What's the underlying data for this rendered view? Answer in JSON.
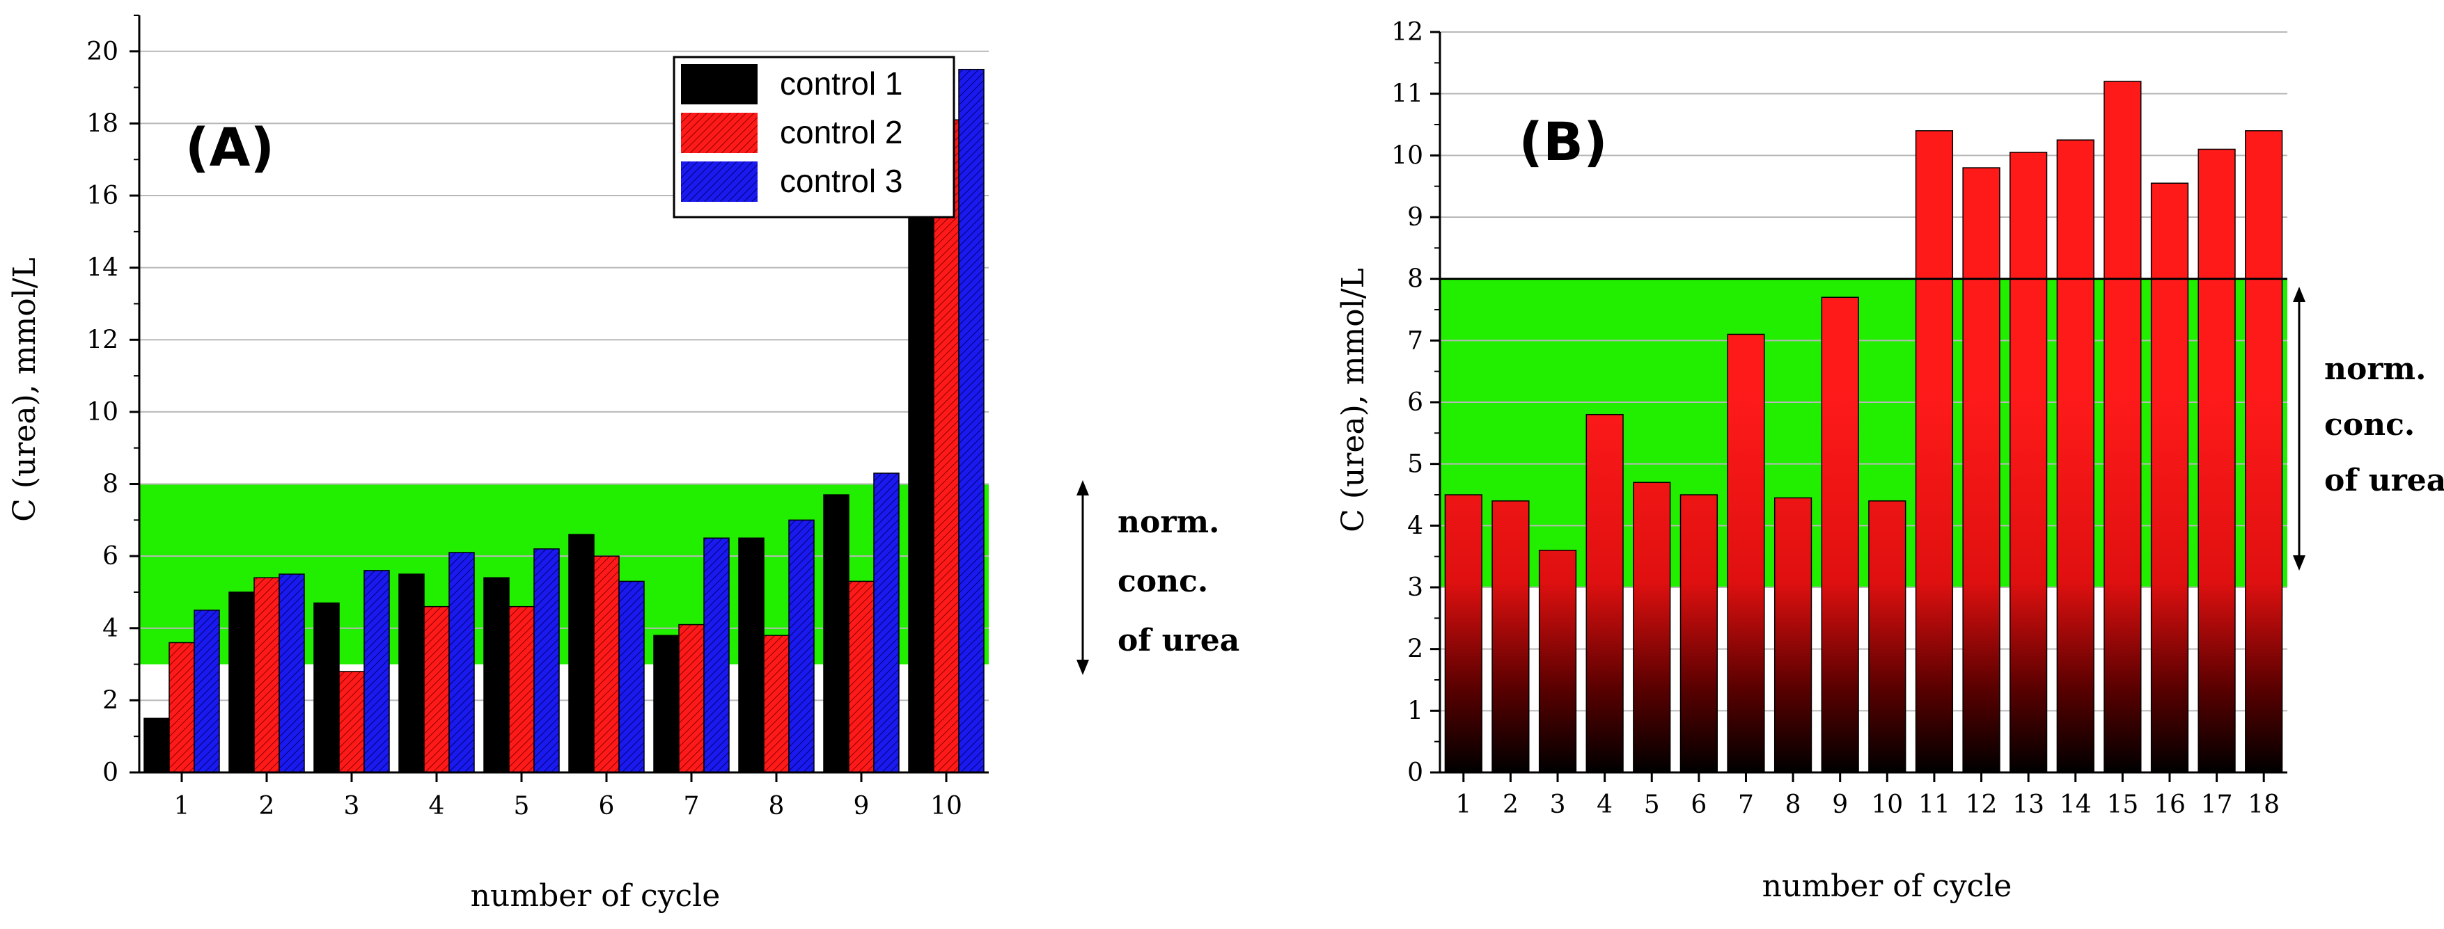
{
  "colors": {
    "normal_band": "#22ee00",
    "control1": "#000000",
    "control2": "#ff1a1a",
    "control3": "#1a1aee",
    "gridline": "#b8b8b8"
  },
  "chart_data": [
    {
      "id": "A",
      "type": "bar",
      "panel_label": "(A)",
      "xlabel": "number of cycle",
      "ylabel": "C (urea), mmol/L",
      "ylim": [
        0,
        21
      ],
      "yticks": [
        0,
        2,
        4,
        6,
        8,
        10,
        12,
        14,
        16,
        18,
        20
      ],
      "categories": [
        "1",
        "2",
        "3",
        "4",
        "5",
        "6",
        "7",
        "8",
        "9",
        "10"
      ],
      "series": [
        {
          "name": "control 1",
          "values": [
            1.5,
            5.0,
            4.7,
            5.5,
            5.4,
            6.6,
            3.8,
            6.5,
            7.7,
            19.4
          ]
        },
        {
          "name": "control 2",
          "values": [
            3.6,
            5.4,
            2.8,
            4.6,
            4.6,
            6.0,
            4.1,
            3.8,
            5.3,
            18.1
          ]
        },
        {
          "name": "control 3",
          "values": [
            4.5,
            5.5,
            5.6,
            6.1,
            6.2,
            5.3,
            6.5,
            7.0,
            8.3,
            19.5
          ]
        }
      ],
      "normal_range": [
        3,
        8
      ],
      "normal_range_label": [
        "norm.",
        "conc.",
        "of urea"
      ],
      "legend_position": "top-right"
    },
    {
      "id": "B",
      "type": "bar",
      "panel_label": "(B)",
      "xlabel": "number of cycle",
      "ylabel": "C (urea), mmol/L",
      "ylim": [
        0,
        12
      ],
      "yticks": [
        0,
        1,
        2,
        3,
        4,
        5,
        6,
        7,
        8,
        9,
        10,
        11,
        12
      ],
      "categories": [
        "1",
        "2",
        "3",
        "4",
        "5",
        "6",
        "7",
        "8",
        "9",
        "10",
        "11",
        "12",
        "13",
        "14",
        "15",
        "16",
        "17",
        "18"
      ],
      "values": [
        4.5,
        4.4,
        3.6,
        5.8,
        4.7,
        4.5,
        7.1,
        4.45,
        7.7,
        4.4,
        10.4,
        9.8,
        10.05,
        10.25,
        11.2,
        9.55,
        10.1,
        10.4
      ],
      "normal_range": [
        3,
        8
      ],
      "normal_range_label": [
        "norm.",
        "conc.",
        "of urea"
      ]
    }
  ]
}
